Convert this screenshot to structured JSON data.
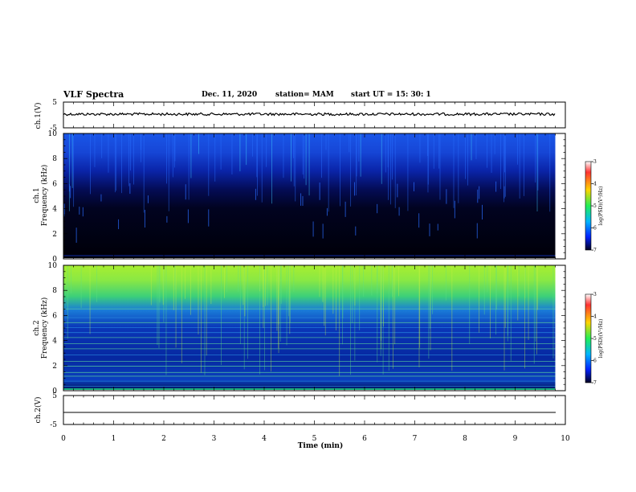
{
  "header": {
    "title": "VLF Spectra",
    "date": "Dec. 11, 2020",
    "station": "station= MAM",
    "start_ut": "start  UT  =    15: 30: 1"
  },
  "panels": {
    "ch1_wave_ylabel": "ch.1(V)",
    "ch1_spec_ylabel_1": "ch.1",
    "ch1_spec_ylabel_2": "Frequency (kHz)",
    "ch2_spec_ylabel_1": "ch.2",
    "ch2_spec_ylabel_2": "Frequency (kHz)",
    "ch2_wave_ylabel": "ch.2(V)",
    "xlabel": "Time  (min)",
    "wave_ticks": [
      "5",
      "-5"
    ],
    "freq_ticks": [
      "0",
      "2",
      "4",
      "6",
      "8",
      "10"
    ],
    "time_ticks": [
      "0",
      "1",
      "2",
      "3",
      "4",
      "5",
      "6",
      "7",
      "8",
      "9",
      "10"
    ]
  },
  "colorbar": {
    "label": "log(PSD)(V²/Hz)",
    "ticks": [
      "-3",
      "-4",
      "-5",
      "-6",
      "-7"
    ],
    "stops": [
      "#ffffff",
      "#ff0000",
      "#ffcc00",
      "#00ff66",
      "#00ccff",
      "#0000ff",
      "#000033"
    ]
  },
  "chart_data": [
    {
      "type": "line",
      "panel": "ch.1 waveform",
      "xlim": [
        0,
        10
      ],
      "ylim": [
        -5,
        5
      ],
      "x_unit": "min",
      "y_unit": "V",
      "series": [
        {
          "mean": 0,
          "amplitude_approx": 0.3
        }
      ]
    },
    {
      "type": "heatmap",
      "panel": "ch.1 spectrogram",
      "xlim": [
        0,
        10
      ],
      "ylim": [
        0,
        10
      ],
      "clim": [
        -7,
        -3
      ],
      "description_levels": [
        {
          "freq_range": [
            0,
            3
          ],
          "log_psd": -7
        },
        {
          "freq_range": [
            3,
            6
          ],
          "log_psd": -6.8
        },
        {
          "freq_range": [
            6,
            8
          ],
          "log_psd": -6.2
        },
        {
          "freq_range": [
            8,
            10
          ],
          "log_psd": -5.8
        }
      ],
      "data_end_min": 9.8
    },
    {
      "type": "heatmap",
      "panel": "ch.2 spectrogram",
      "xlim": [
        0,
        10
      ],
      "ylim": [
        0,
        10
      ],
      "clim": [
        -7,
        -3
      ],
      "description_levels": [
        {
          "freq_range": [
            0,
            2
          ],
          "log_psd": -6.4
        },
        {
          "freq_range": [
            2,
            5.5
          ],
          "log_psd": -6.0
        },
        {
          "freq_range": [
            5.5,
            7.5
          ],
          "log_psd": -5.5
        },
        {
          "freq_range": [
            7.5,
            10
          ],
          "log_psd": -4.9
        }
      ],
      "data_end_min": 9.8
    },
    {
      "type": "line",
      "panel": "ch.2 waveform",
      "xlim": [
        0,
        10
      ],
      "ylim": [
        -5,
        5
      ],
      "x_unit": "min",
      "y_unit": "V",
      "series": [
        {
          "mean": -1.5,
          "amplitude_approx": 0
        }
      ]
    }
  ]
}
